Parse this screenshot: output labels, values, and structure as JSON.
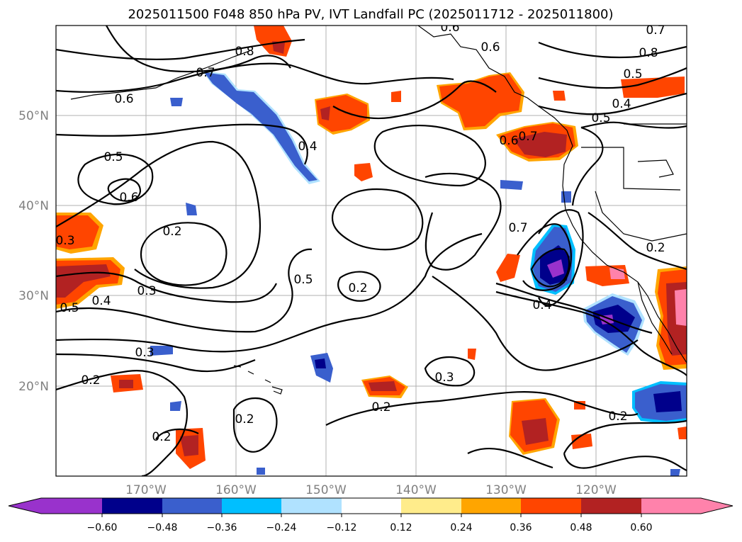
{
  "title": "2025011500 F048 850 hPa PV, IVT Landfall PC (2025011712 - 2025011800)",
  "map": {
    "lat_labels": [
      "50°N",
      "40°N",
      "30°N",
      "20°N"
    ],
    "lon_labels": [
      "170°W",
      "160°W",
      "150°W",
      "140°W",
      "130°W",
      "120°W"
    ],
    "contour_labels": [
      "0.6",
      "0.6",
      "0.7",
      "0.8",
      "0.7",
      "0.6",
      "0.8",
      "0.5",
      "0.4",
      "0.5",
      "0.4",
      "0.6",
      "0.7",
      "0.5",
      "0.6",
      "0.2",
      "0.3",
      "0.3",
      "0.5",
      "0.4",
      "0.5",
      "0.2",
      "0.7",
      "0.4",
      "0.2",
      "0.3",
      "0.2",
      "0.3",
      "0.2",
      "0.2",
      "0.2",
      "0.2"
    ],
    "palette": [
      "#8a2be2",
      "#00008b",
      "#3a5fcd",
      "#00bfff",
      "#b0e2ff",
      "#ffffff",
      "#ffec8b",
      "#ffa500",
      "#ff4500",
      "#b22222",
      "#ff82ab"
    ]
  },
  "colorbar": {
    "ticks": [
      "−0.60",
      "−0.48",
      "−0.36",
      "−0.24",
      "−0.12",
      "0.12",
      "0.24",
      "0.36",
      "0.48",
      "0.60"
    ],
    "colors": [
      "#9932cc",
      "#00008b",
      "#3a5fcd",
      "#00bfff",
      "#b0e2ff",
      "#ffffff",
      "#ffec8b",
      "#ffa500",
      "#ff4500",
      "#b22222",
      "#ff82ab"
    ]
  }
}
